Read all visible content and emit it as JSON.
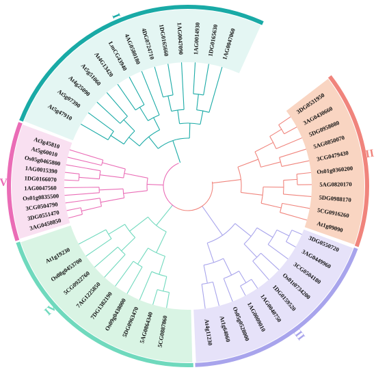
{
  "clades": [
    {
      "id": "I",
      "label": "I",
      "color": "#19aaa6",
      "bg": "#e4f6f3",
      "leaves": [
        "At5g47910",
        "At5g07390",
        "At4g25090",
        "At5g51060",
        "At4G13420",
        "LmCG43940",
        "4AG0580180",
        "4DG0724710",
        "1DG0165660",
        "1AG0047090",
        "1AG0014930",
        "1DG0165630",
        "1AG0047060"
      ]
    },
    {
      "id": "II",
      "label": "II",
      "color": "#f0847c",
      "bg": "#f9d5c2",
      "leaves": [
        "3DG0531950",
        "3AG0430660",
        "5DG0958080",
        "5AG0850070",
        "3CG0479430",
        "Os01g0360200",
        "5AG0820170",
        "5DG0988170",
        "5CG0916260",
        "At1g09090"
      ]
    },
    {
      "id": "III",
      "label": "III",
      "color": "#a8a4ec",
      "bg": "#e6e2f9",
      "leaves": [
        "3DG0550720",
        "3AG0449960",
        "3CG0504180",
        "Os01t0734200",
        "1DG0159520",
        "1AG0040750",
        "1AG0009010",
        "Os05g0528000",
        "At1g64060",
        "At4g11230"
      ]
    },
    {
      "id": "IV",
      "label": "IV",
      "color": "#6fd9bd",
      "bg": "#d9f4e4",
      "leaves": [
        "5CG0887860",
        "5AG0864340",
        "5DG0963470",
        "Os09g0438000",
        "7DG1382190",
        "7AG1225850",
        "5CG0922760",
        "Os08g0453700",
        "At1g19230"
      ]
    },
    {
      "id": "V",
      "label": "V",
      "color": "#ea6cb6",
      "bg": "#f9e0f1",
      "leaves": [
        "3AG0450850",
        "3DG0551470",
        "3CG0504790",
        "Os01g0835500",
        "1AG0047560",
        "1DG0166070",
        "1AG0015390",
        "Os05g0465800",
        "At5g60010",
        "At3g45810"
      ]
    }
  ]
}
